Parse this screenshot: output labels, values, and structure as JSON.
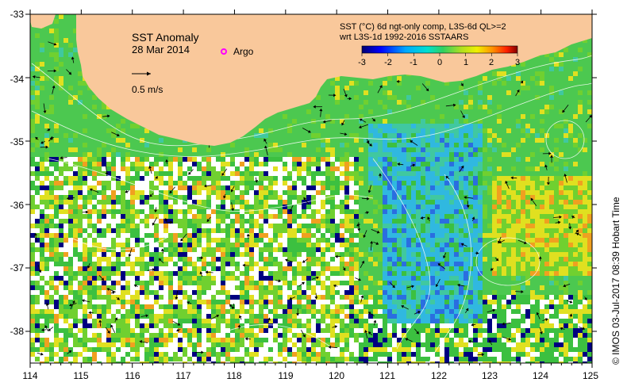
{
  "map": {
    "title": "SST Anomaly",
    "date": "28 Mar 2014",
    "argo_label": "Argo",
    "vector_scale_label": "0.5 m/s",
    "product_line1": "SST (°C) 6d ngt-only comp, L3S-6d QL>=2",
    "product_line2": "wrt L3S-1d 1992-2016 SSTAARS",
    "credit": "© IMOS 03-Jul-2017 08:39 Hobart Time",
    "lon_ticks": [
      "114",
      "115",
      "116",
      "117",
      "118",
      "119",
      "120",
      "121",
      "122",
      "123",
      "124",
      "125"
    ],
    "lat_ticks": [
      "-33",
      "-34",
      "-35",
      "-36",
      "-37",
      "-38"
    ],
    "colorbar": {
      "ticks": [
        "-3",
        "-2",
        "-1",
        "0",
        "1",
        "2",
        "3"
      ],
      "colors": [
        "#000080",
        "#0000ff",
        "#00a0ff",
        "#00e0e0",
        "#30d060",
        "#a0e020",
        "#f0f000",
        "#ff9000",
        "#ff2000",
        "#900000"
      ]
    },
    "colors": {
      "land": "#f9c89b",
      "no_data": "#ffffff",
      "ocean_green": "#4cc850",
      "argo_marker": "#ff00ff"
    }
  }
}
